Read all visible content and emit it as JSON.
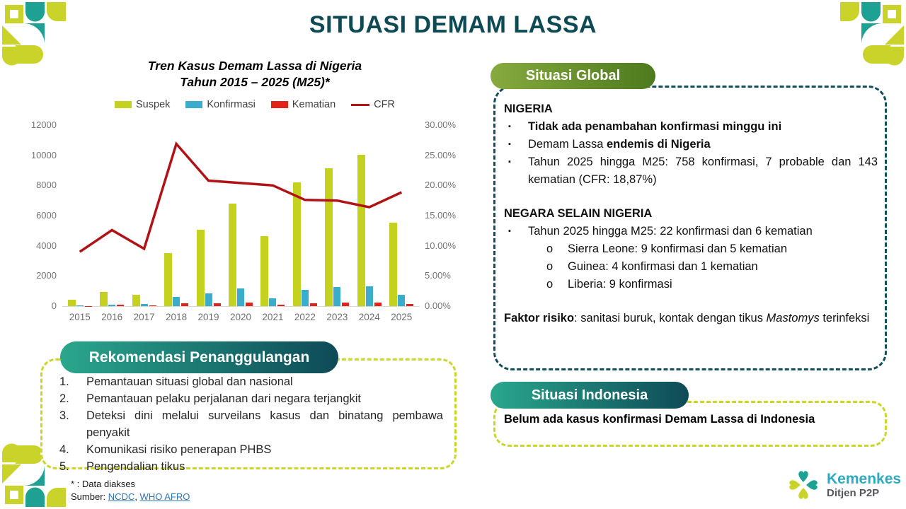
{
  "page": {
    "title": "SITUASI DEMAM LASSA"
  },
  "chart": {
    "title_line1": "Tren Kasus Demam Lassa di Nigeria",
    "title_line2": "Tahun 2015 – 2025 (M25)*"
  },
  "chart_data": {
    "type": "bar",
    "title": "Tren Kasus Demam Lassa di Nigeria Tahun 2015 – 2025 (M25)*",
    "categories": [
      "2015",
      "2016",
      "2017",
      "2018",
      "2019",
      "2020",
      "2021",
      "2022",
      "2023",
      "2024",
      "2025"
    ],
    "series": [
      {
        "name": "Suspek",
        "type": "bar",
        "color": "#c5d11f",
        "values": [
          430,
          921,
          733,
          3498,
          5057,
          6791,
          4654,
          8202,
          9155,
          10010,
          5540
        ]
      },
      {
        "name": "Konfirmasi",
        "type": "bar",
        "color": "#3badcb",
        "values": [
          25,
          106,
          143,
          633,
          833,
          1189,
          510,
          1067,
          1270,
          1309,
          758
        ]
      },
      {
        "name": "Kematian",
        "type": "bar",
        "color": "#e2231a",
        "values": [
          4,
          101,
          57,
          171,
          174,
          244,
          102,
          189,
          227,
          214,
          143
        ]
      },
      {
        "name": "CFR",
        "type": "line",
        "axis": "right",
        "color": "#b01216",
        "values": [
          9.0,
          12.6,
          9.5,
          26.9,
          20.8,
          20.4,
          20.0,
          17.6,
          17.5,
          16.4,
          18.87
        ]
      }
    ],
    "xlabel": "",
    "ylabel": "",
    "ylim": [
      0,
      12000
    ],
    "y_tick_step": 2000,
    "y2lim": [
      0,
      30
    ],
    "y2_tick_step": 5,
    "y2_format": "percent2",
    "grid": false,
    "legend_position": "top"
  },
  "global": {
    "pill_label": "Situasi Global",
    "rows": [
      {
        "kind": "heading",
        "text": "NIGERIA"
      },
      {
        "kind": "bullet",
        "marker": "▪",
        "segments": [
          {
            "t": "Tidak ada penambahan konfirmasi minggu ini",
            "b": true
          }
        ]
      },
      {
        "kind": "bullet",
        "marker": "▪",
        "segments": [
          {
            "t": "Demam Lassa "
          },
          {
            "t": "endemis di Nigeria",
            "b": true
          }
        ]
      },
      {
        "kind": "bullet",
        "marker": "▪",
        "justify": true,
        "segments": [
          {
            "t": "Tahun 2025 hingga M25: 758 konfirmasi, 7 probable dan 143 kematian (CFR: 18,87%)"
          }
        ]
      },
      {
        "kind": "spacer"
      },
      {
        "kind": "heading",
        "text": "NEGARA SELAIN NIGERIA"
      },
      {
        "kind": "bullet",
        "marker": "▪",
        "segments": [
          {
            "t": "Tahun 2025 hingga M25: 22 konfirmasi dan 6 kematian"
          }
        ]
      },
      {
        "kind": "bullet2",
        "marker": "o",
        "segments": [
          {
            "t": "Sierra Leone: 9 konfirmasi dan 5 kematian"
          }
        ]
      },
      {
        "kind": "bullet2",
        "marker": "o",
        "segments": [
          {
            "t": "Guinea: 4 konfirmasi dan 1 kematian"
          }
        ]
      },
      {
        "kind": "bullet2",
        "marker": "o",
        "segments": [
          {
            "t": "Liberia: 9 konfirmasi"
          }
        ]
      },
      {
        "kind": "spacer"
      },
      {
        "kind": "para",
        "justify": true,
        "segments": [
          {
            "t": "Faktor risiko",
            "b": true
          },
          {
            "t": ": sanitasi buruk, kontak dengan tikus "
          },
          {
            "t": "Mastomys",
            "i": true
          },
          {
            "t": " terinfeksi"
          }
        ]
      }
    ]
  },
  "rekomendasi": {
    "pill_label": "Rekomendasi Penanggulangan",
    "items": [
      {
        "num": "1.",
        "text": "Pemantauan situasi global dan nasional"
      },
      {
        "num": "2.",
        "text": "Pemantauan pelaku perjalanan dari negara terjangkit"
      },
      {
        "num": "3.",
        "text": "Deteksi dini melalui surveilans kasus dan binatang pembawa penyakit",
        "justify": true
      },
      {
        "num": "4.",
        "text": "Komunikasi risiko penerapan PHBS"
      },
      {
        "num": "5.",
        "text": "Pengendalian tikus"
      }
    ]
  },
  "indonesia": {
    "pill_label": "Situasi Indonesia",
    "text": "Belum ada kasus konfirmasi Demam Lassa di Indonesia"
  },
  "footer": {
    "note": "* : Data diakses",
    "source_prefix": "Sumber: ",
    "link1": "NCDC",
    "separator": ", ",
    "link2": "WHO AFRO"
  },
  "logo": {
    "line1": "Kemenkes",
    "line2": "Ditjen P2P"
  },
  "colors": {
    "title": "#0d4a54",
    "deco_teal": "#1ca193",
    "deco_lime": "#c9d32a",
    "pill_green_start": "#87aa3e",
    "pill_green_end": "#4d7a1d",
    "pill_teal_start": "#2aa78d",
    "pill_teal_end": "#0e4a57",
    "dash_teal": "#134f5a",
    "dash_lime": "#cbd52b",
    "link": "#2e75b6"
  }
}
